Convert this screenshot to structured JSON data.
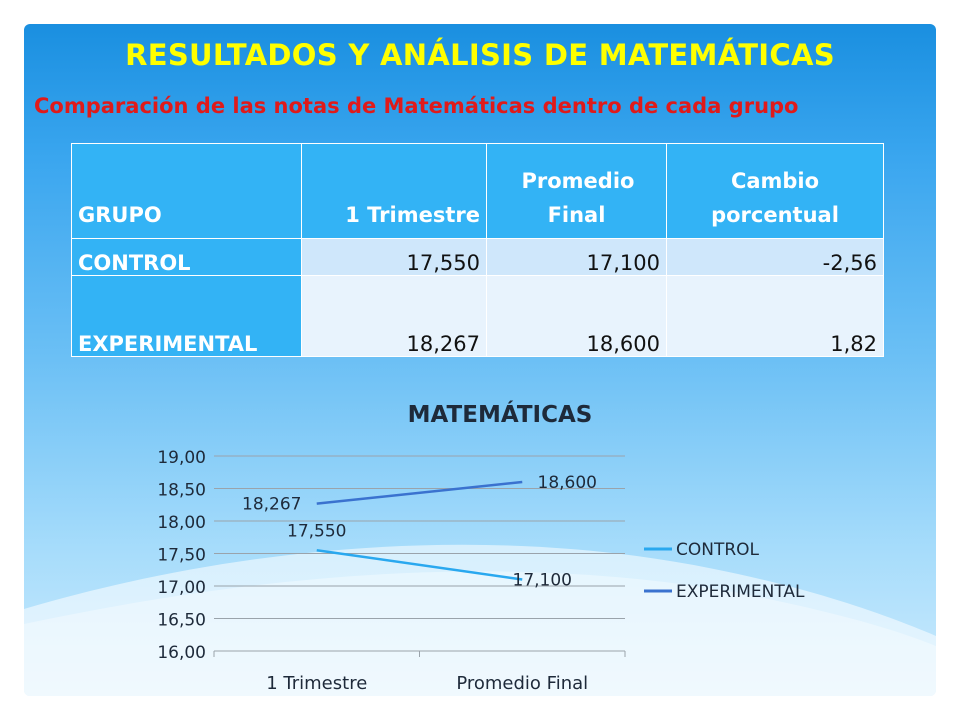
{
  "slide": {
    "title": "RESULTADOS Y ANÁLISIS DE MATEMÁTICAS",
    "subtitle": "Comparación de las notas de Matemáticas dentro de cada grupo"
  },
  "table": {
    "headers": [
      "GRUPO",
      "1 Trimestre",
      "Promedio Final",
      "Cambio porcentual"
    ],
    "rows": [
      {
        "group": "CONTROL",
        "trimestre": "17,550",
        "promedio": "17,100",
        "cambio": "-2,56"
      },
      {
        "group": "EXPERIMENTAL",
        "trimestre": "18,267",
        "promedio": "18,600",
        "cambio": "1,82"
      }
    ]
  },
  "chart_data": {
    "type": "line",
    "title": "MATEMÁTICAS",
    "categories": [
      "1 Trimestre",
      "Promedio Final"
    ],
    "series": [
      {
        "name": "CONTROL",
        "values": [
          17.55,
          17.1
        ],
        "labels": [
          "17,550",
          "17,100"
        ],
        "color": "#29a8ef"
      },
      {
        "name": "EXPERIMENTAL",
        "values": [
          18.267,
          18.6
        ],
        "labels": [
          "18,267",
          "18,600"
        ],
        "color": "#3a72cf"
      }
    ],
    "ylim": [
      16,
      19
    ],
    "yticks": [
      16,
      16.5,
      17,
      17.5,
      18,
      18.5,
      19
    ],
    "ytick_labels": [
      "16,00",
      "16,50",
      "17,00",
      "17,50",
      "18,00",
      "18,50",
      "19,00"
    ],
    "grid": true,
    "legend": "right"
  }
}
